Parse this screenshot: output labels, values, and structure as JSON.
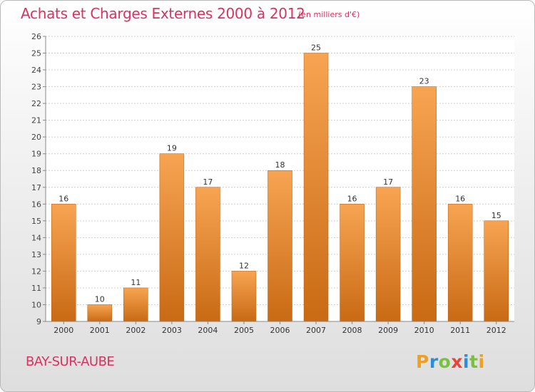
{
  "header": {
    "title": "Achats et Charges Externes 2000 à 2012",
    "subtitle": "(en milliers d'€)"
  },
  "footer": {
    "commune": "BAY-SUR-AUBE",
    "brand": "Proxiti"
  },
  "colors": {
    "accent": "#d8335f",
    "bar_top": "#f7a452",
    "bar_bottom": "#c96a14",
    "grid": "#d0d0d0"
  },
  "chart_data": {
    "type": "bar",
    "title": "Achats et Charges Externes 2000 à 2012",
    "subtitle": "(en milliers d'€)",
    "categories": [
      "2000",
      "2001",
      "2002",
      "2003",
      "2004",
      "2005",
      "2006",
      "2007",
      "2008",
      "2009",
      "2010",
      "2011",
      "2012"
    ],
    "values": [
      16,
      10,
      11,
      19,
      17,
      12,
      18,
      25,
      16,
      17,
      23,
      16,
      15
    ],
    "ylim": [
      9,
      26
    ],
    "yticks": [
      9,
      10,
      11,
      12,
      13,
      14,
      15,
      16,
      17,
      18,
      19,
      20,
      21,
      22,
      23,
      24,
      25,
      26
    ],
    "grid": true,
    "data_labels": true
  }
}
